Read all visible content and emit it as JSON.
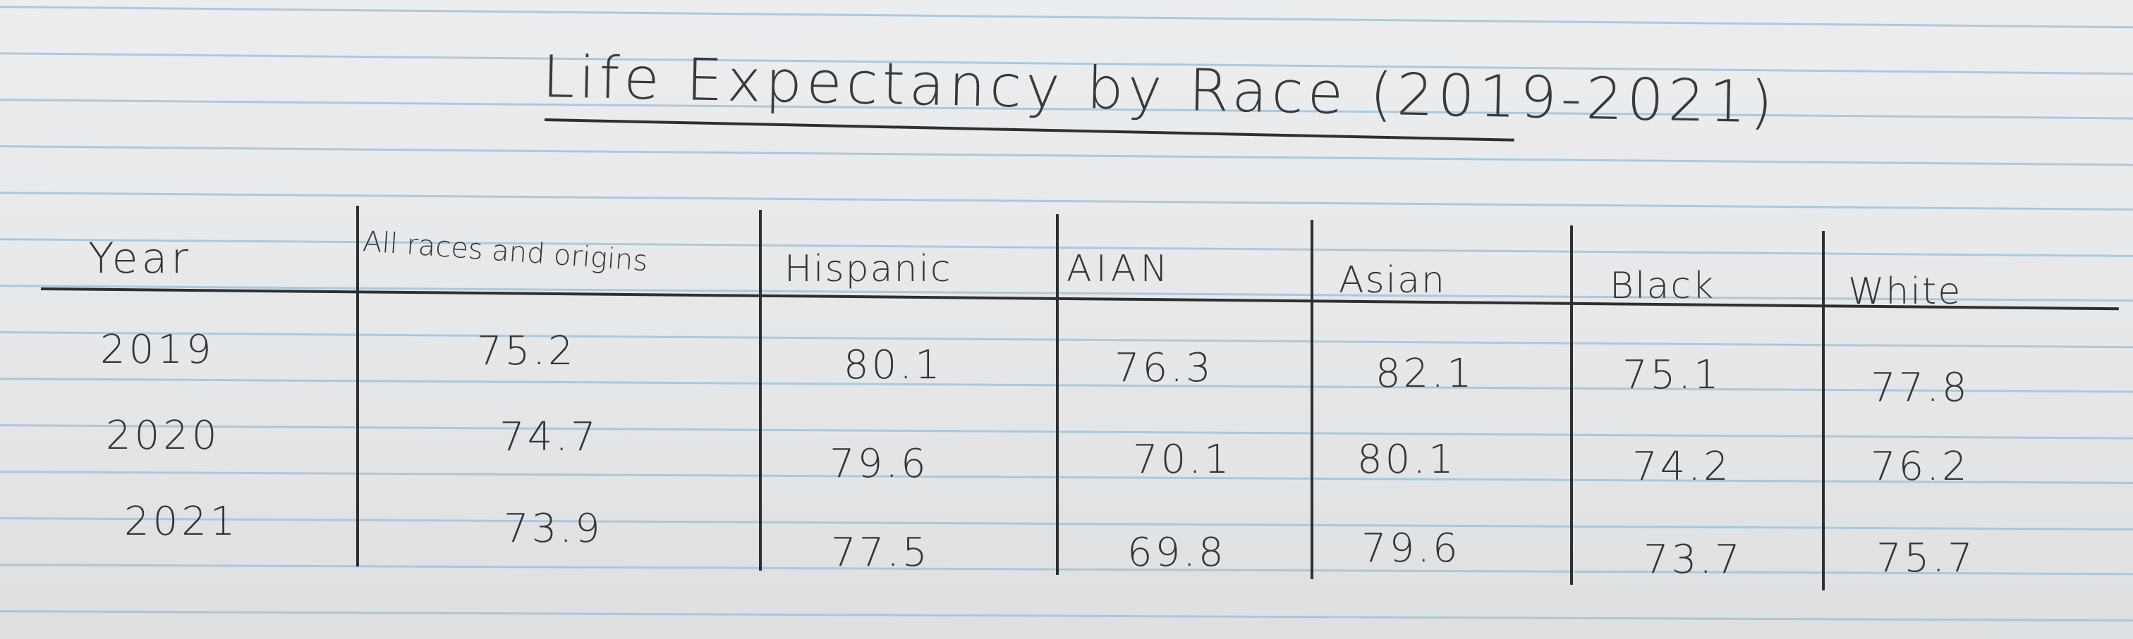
{
  "title": "Life Expectancy by Race (2019-2021)",
  "table": {
    "headers": [
      "Year",
      "All races and origins",
      "Hispanic",
      "AIAN",
      "Asian",
      "Black",
      "White"
    ],
    "rows": [
      [
        "2019",
        "75.2",
        "80.1",
        "76.3",
        "82.1",
        "75.1",
        "77.8"
      ],
      [
        "2020",
        "74.7",
        "79.6",
        "70.1",
        "80.1",
        "74.2",
        "76.2"
      ],
      [
        "2021",
        "73.9",
        "77.5",
        "69.8",
        "79.6",
        "73.7",
        "75.7"
      ]
    ]
  }
}
